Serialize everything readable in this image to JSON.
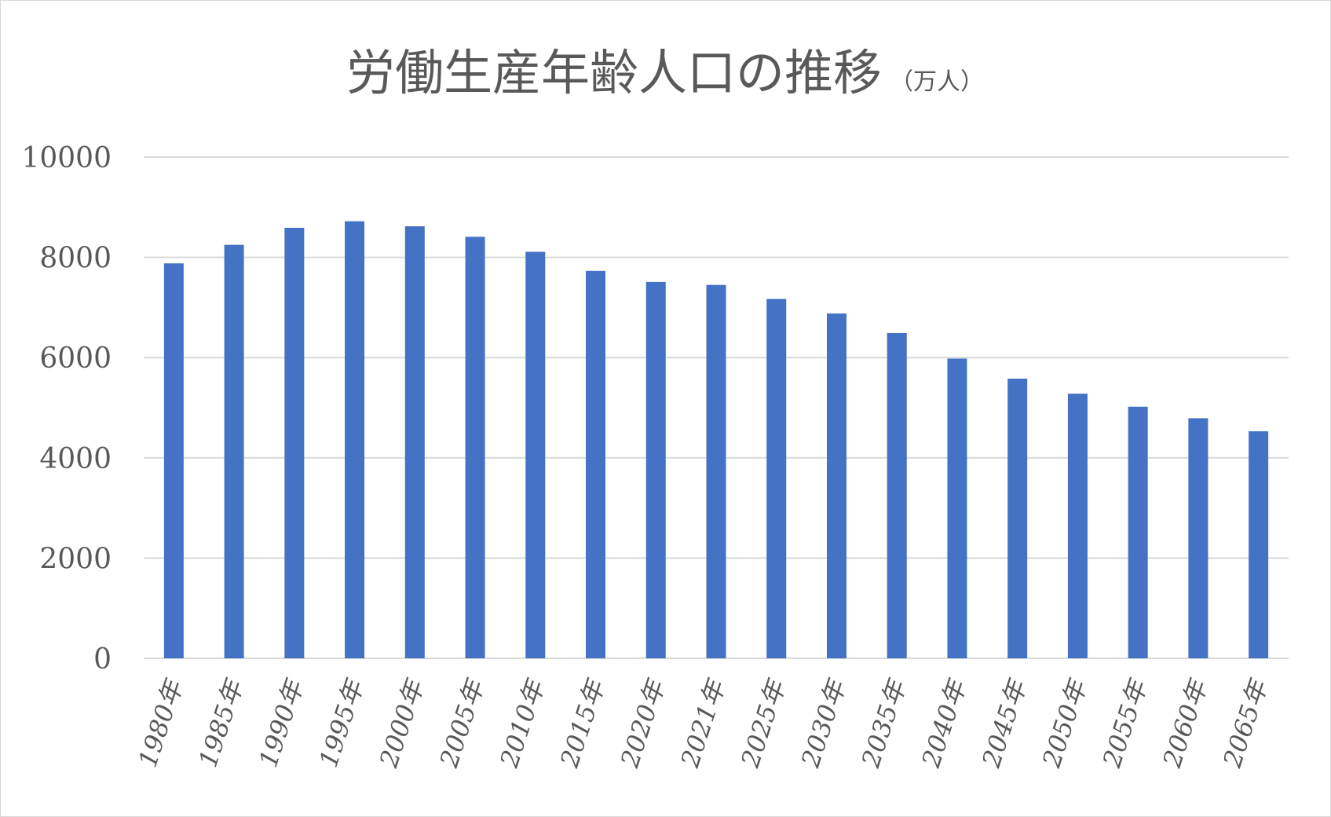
{
  "chart_data": {
    "type": "bar",
    "title": "労働生産年齢人口の推移",
    "title_unit": "（万人）",
    "categories": [
      "1980年",
      "1985年",
      "1990年",
      "1995年",
      "2000年",
      "2005年",
      "2010年",
      "2015年",
      "2020年",
      "2021年",
      "2025年",
      "2030年",
      "2035年",
      "2040年",
      "2045年",
      "2050年",
      "2055年",
      "2060年",
      "2065年"
    ],
    "series": [
      {
        "values": [
          7880,
          8250,
          8590,
          8720,
          8620,
          8410,
          8110,
          7730,
          7510,
          7450,
          7170,
          6880,
          6490,
          5980,
          5580,
          5280,
          5020,
          4790,
          4530
        ]
      }
    ],
    "ylim": [
      0,
      10000
    ],
    "yticks": [
      0,
      2000,
      4000,
      6000,
      8000,
      10000
    ],
    "xlabel": "",
    "ylabel": "",
    "grid": true,
    "legend": "none",
    "bar_color": "#4472c4"
  }
}
